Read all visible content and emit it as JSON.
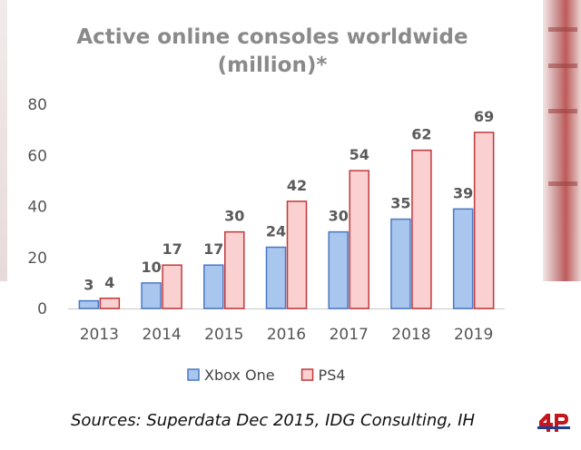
{
  "chart_data": {
    "type": "bar",
    "title_lines": [
      "Active online consoles worldwide",
      "(million)*"
    ],
    "categories": [
      "2013",
      "2014",
      "2015",
      "2016",
      "2017",
      "2018",
      "2019"
    ],
    "series": [
      {
        "name": "Xbox One",
        "values": [
          3,
          10,
          17,
          24,
          30,
          35,
          39
        ],
        "fill": "#a9c6ee",
        "stroke": "#4a78c3"
      },
      {
        "name": "PS4",
        "values": [
          4,
          17,
          30,
          42,
          54,
          62,
          69
        ],
        "fill": "#fbd0d0",
        "stroke": "#c0393b"
      }
    ],
    "yticks": [
      0,
      20,
      40,
      60,
      80
    ],
    "ylim": [
      0,
      80
    ],
    "grid": false,
    "legend_position": "bottom"
  },
  "source_text": "Sources: Superdata Dec 2015, IDG Consulting, IH",
  "logo": {
    "text": "4P",
    "color": "#c4161c",
    "accent": "#1f3e8f"
  }
}
